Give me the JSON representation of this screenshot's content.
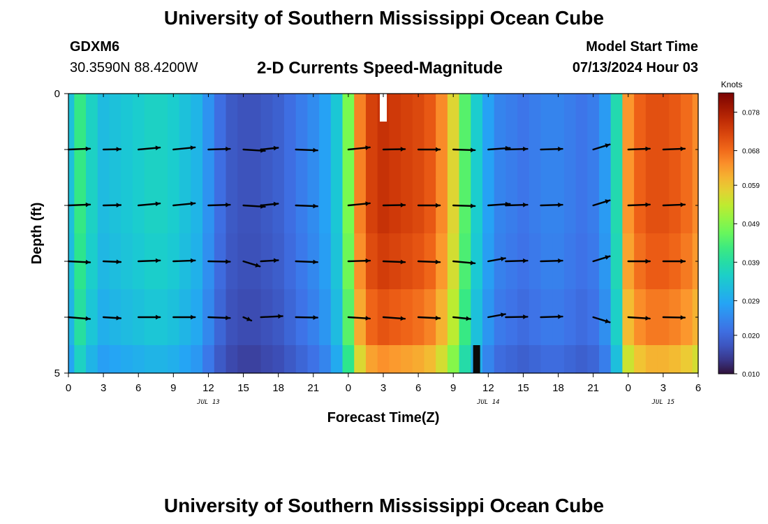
{
  "header": {
    "title": "University of Southern Mississippi Ocean Cube",
    "station": "GDXM6",
    "coords": "30.3590N  88.4200W",
    "subtitle": "2-D Currents Speed-Magnitude",
    "start_label": "Model Start Time",
    "start_value": "07/13/2024 Hour 03"
  },
  "footer": {
    "title": "University of Southern Mississippi Ocean Cube"
  },
  "chart_data": {
    "type": "heatmap",
    "title": "2-D Currents Speed-Magnitude",
    "xlabel": "Forecast Time(Z)",
    "ylabel": "Depth (ft)",
    "xlim": [
      0,
      54
    ],
    "ylim": [
      0,
      5
    ],
    "y_inverted": true,
    "x_ticks": [
      0,
      3,
      6,
      9,
      12,
      15,
      18,
      21,
      24,
      27,
      30,
      33,
      36,
      39,
      42,
      45,
      48,
      51,
      54
    ],
    "x_tick_labels": [
      "0",
      "3",
      "6",
      "9",
      "12",
      "15",
      "18",
      "21",
      "0",
      "3",
      "6",
      "9",
      "12",
      "15",
      "18",
      "21",
      "0",
      "3",
      "6"
    ],
    "y_ticks": [
      0,
      1,
      2,
      3,
      4,
      5
    ],
    "y_tick_labels": [
      "0",
      "",
      "",
      "",
      "",
      "5"
    ],
    "date_labels": [
      {
        "x": 12,
        "label": "JUL 13"
      },
      {
        "x": 36,
        "label": "JUL 14"
      },
      {
        "x": 51,
        "label": "JUL 15"
      }
    ],
    "colorbar": {
      "title": "Knots",
      "min": 0.01,
      "max": 0.083,
      "ticks": [
        0.01,
        0.02,
        0.029,
        0.039,
        0.049,
        0.059,
        0.068,
        0.078
      ],
      "tick_labels": [
        "0.010",
        "0.020",
        "0.029",
        "0.039",
        "0.049",
        "0.059",
        "0.068",
        "0.078"
      ]
    },
    "profile_hours": [
      0,
      1,
      2,
      3,
      4,
      5,
      6,
      7,
      8,
      9,
      10,
      11,
      12,
      13,
      14,
      15,
      16,
      17,
      18,
      19,
      20,
      21,
      22,
      23,
      24,
      25,
      26,
      27,
      28,
      29,
      30,
      31,
      32,
      33,
      34,
      35,
      36,
      37,
      38,
      39,
      40,
      41,
      42,
      43,
      44,
      45,
      46,
      47,
      48,
      49,
      50,
      51,
      52,
      53,
      54
    ],
    "profile_speed": [
      0.033,
      0.042,
      0.036,
      0.032,
      0.033,
      0.034,
      0.035,
      0.036,
      0.036,
      0.035,
      0.033,
      0.031,
      0.026,
      0.021,
      0.018,
      0.017,
      0.017,
      0.018,
      0.019,
      0.021,
      0.023,
      0.025,
      0.028,
      0.034,
      0.048,
      0.066,
      0.073,
      0.075,
      0.074,
      0.073,
      0.072,
      0.07,
      0.065,
      0.057,
      0.045,
      0.035,
      0.028,
      0.024,
      0.023,
      0.022,
      0.023,
      0.024,
      0.024,
      0.023,
      0.022,
      0.023,
      0.027,
      0.038,
      0.064,
      0.069,
      0.071,
      0.071,
      0.07,
      0.068,
      0.065
    ],
    "depth_levels": [
      0,
      0.5,
      1.5,
      2.5,
      3.5,
      4.5,
      5
    ],
    "depth_factor": [
      1.0,
      1.0,
      1.0,
      0.98,
      0.94,
      0.86,
      0.8
    ],
    "missing_cells": [
      {
        "hour": 27,
        "depth_from": 0,
        "depth_to": 0.5
      },
      {
        "hour": 35,
        "depth_from": 4.5,
        "depth_to": 5
      }
    ],
    "vector_rows": [
      {
        "depth": 1,
        "vectors": [
          [
            0,
            0.05,
            0.04
          ],
          [
            3,
            0.04,
            0.02
          ],
          [
            6,
            0.05,
            0.09
          ],
          [
            9,
            0.05,
            0.1
          ],
          [
            12,
            0.05,
            0.03
          ],
          [
            15,
            0.05,
            -0.06
          ],
          [
            16.5,
            0.04,
            0.1
          ],
          [
            19.5,
            0.05,
            -0.04
          ],
          [
            24,
            0.05,
            0.1
          ],
          [
            27,
            0.05,
            0.02
          ],
          [
            30,
            0.05,
            0
          ],
          [
            33,
            0.05,
            -0.03
          ],
          [
            36,
            0.05,
            0.07
          ],
          [
            37.5,
            0.05,
            0.03
          ],
          [
            40.5,
            0.05,
            0.03
          ],
          [
            45,
            0.04,
            0.3
          ],
          [
            48,
            0.05,
            0.04
          ],
          [
            51,
            0.05,
            0.04
          ]
        ]
      },
      {
        "depth": 2,
        "vectors": [
          [
            0,
            0.05,
            0.04
          ],
          [
            3,
            0.04,
            0.02
          ],
          [
            6,
            0.05,
            0.09
          ],
          [
            9,
            0.05,
            0.1
          ],
          [
            12,
            0.05,
            0.03
          ],
          [
            15,
            0.05,
            -0.06
          ],
          [
            16.5,
            0.04,
            0.1
          ],
          [
            19.5,
            0.05,
            -0.04
          ],
          [
            24,
            0.05,
            0.1
          ],
          [
            27,
            0.05,
            0.02
          ],
          [
            30,
            0.05,
            0
          ],
          [
            33,
            0.05,
            -0.03
          ],
          [
            36,
            0.05,
            0.07
          ],
          [
            37.5,
            0.05,
            0.03
          ],
          [
            40.5,
            0.05,
            0.03
          ],
          [
            45,
            0.04,
            0.3
          ],
          [
            48,
            0.05,
            0.04
          ],
          [
            51,
            0.05,
            0.04
          ]
        ]
      },
      {
        "depth": 3,
        "vectors": [
          [
            0,
            0.05,
            -0.05
          ],
          [
            3,
            0.04,
            -0.04
          ],
          [
            6,
            0.05,
            0.04
          ],
          [
            9,
            0.05,
            0.04
          ],
          [
            12,
            0.05,
            -0.02
          ],
          [
            15,
            0.04,
            -0.3
          ],
          [
            16.5,
            0.04,
            0.06
          ],
          [
            19.5,
            0.05,
            -0.04
          ],
          [
            24,
            0.05,
            0.03
          ],
          [
            27,
            0.05,
            -0.04
          ],
          [
            30,
            0.05,
            -0.04
          ],
          [
            33,
            0.05,
            -0.09
          ],
          [
            36,
            0.04,
            0.18
          ],
          [
            37.5,
            0.05,
            0.03
          ],
          [
            40.5,
            0.05,
            0.03
          ],
          [
            45,
            0.04,
            0.3
          ],
          [
            48,
            0.05,
            0
          ],
          [
            51,
            0.05,
            0
          ]
        ]
      },
      {
        "depth": 4,
        "vectors": [
          [
            0,
            0.05,
            -0.08
          ],
          [
            3,
            0.04,
            -0.06
          ],
          [
            6,
            0.05,
            0
          ],
          [
            9,
            0.05,
            0
          ],
          [
            12,
            0.05,
            -0.04
          ],
          [
            15,
            0.02,
            -0.4
          ],
          [
            16.5,
            0.05,
            0.05
          ],
          [
            19.5,
            0.05,
            -0.02
          ],
          [
            24,
            0.05,
            -0.06
          ],
          [
            27,
            0.05,
            -0.07
          ],
          [
            30,
            0.05,
            -0.05
          ],
          [
            33,
            0.04,
            -0.1
          ],
          [
            36,
            0.04,
            0.18
          ],
          [
            37.5,
            0.05,
            0.02
          ],
          [
            40.5,
            0.05,
            0.03
          ],
          [
            45,
            0.04,
            -0.3
          ],
          [
            48,
            0.05,
            -0.06
          ],
          [
            51,
            0.05,
            -0.02
          ]
        ]
      }
    ]
  }
}
